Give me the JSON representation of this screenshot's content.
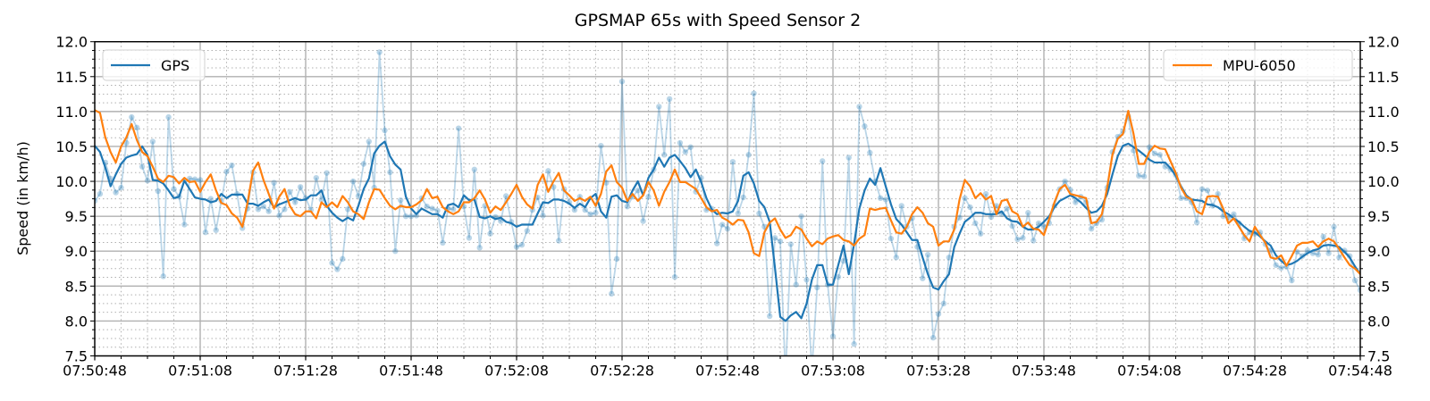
{
  "chart_data": {
    "type": "line",
    "title": "GPSMAP 65s with Speed Sensor 2",
    "xlabel": "",
    "ylabel": "Speed (in km/h)",
    "ylim": [
      7.5,
      12.0
    ],
    "xlim": [
      "07:50:48",
      "07:54:48"
    ],
    "xticks": [
      "07:50:48",
      "07:51:08",
      "07:51:28",
      "07:51:48",
      "07:52:08",
      "07:52:28",
      "07:52:48",
      "07:53:08",
      "07:53:28",
      "07:53:48",
      "07:54:08",
      "07:54:28",
      "07:54:48"
    ],
    "yticks": [
      "7.5",
      "8.0",
      "8.5",
      "9.0",
      "9.5",
      "10.0",
      "10.5",
      "11.0",
      "11.5",
      "12.0"
    ],
    "x_minor_step_seconds": 5,
    "y_minor_step": 0.125,
    "grid": true,
    "right_axis_mirrors_left": true,
    "legends": [
      {
        "placement": "top-left",
        "entries": [
          "GPS"
        ]
      },
      {
        "placement": "top-right",
        "entries": [
          "MPU-6050"
        ]
      }
    ],
    "colors": {
      "GPS": "#1f77b4",
      "MPU-6050": "#ff7f0e",
      "grid": "#b0b0b0"
    },
    "x": [
      "07:50:48",
      "07:50:49",
      "07:50:50",
      "07:50:51",
      "07:50:52",
      "07:50:53",
      "07:50:54",
      "07:50:55",
      "07:50:56",
      "07:50:57",
      "07:50:58",
      "07:50:59",
      "07:51:00",
      "07:51:01",
      "07:51:02",
      "07:51:03",
      "07:51:04",
      "07:51:05",
      "07:51:06",
      "07:51:07",
      "07:51:08",
      "07:51:09",
      "07:51:10",
      "07:51:11",
      "07:51:12",
      "07:51:13",
      "07:51:14",
      "07:51:15",
      "07:51:16",
      "07:51:17",
      "07:51:18",
      "07:51:19",
      "07:51:20",
      "07:51:21",
      "07:51:22",
      "07:51:23",
      "07:51:24",
      "07:51:25",
      "07:51:26",
      "07:51:27",
      "07:51:28",
      "07:51:29",
      "07:51:30",
      "07:51:31",
      "07:51:32",
      "07:51:33",
      "07:51:34",
      "07:51:35",
      "07:51:36",
      "07:51:37",
      "07:51:38",
      "07:51:39",
      "07:51:40",
      "07:51:41",
      "07:51:42",
      "07:51:43",
      "07:51:44",
      "07:51:45",
      "07:51:46",
      "07:51:47",
      "07:51:48",
      "07:51:49",
      "07:51:50",
      "07:51:51",
      "07:51:52",
      "07:51:53",
      "07:51:54",
      "07:51:55",
      "07:51:56",
      "07:51:57",
      "07:51:58",
      "07:51:59",
      "07:52:00",
      "07:52:01",
      "07:52:02",
      "07:52:03",
      "07:52:04",
      "07:52:05",
      "07:52:06",
      "07:52:07",
      "07:52:08",
      "07:52:09",
      "07:52:10",
      "07:52:11",
      "07:52:12",
      "07:52:13",
      "07:52:14",
      "07:52:15",
      "07:52:16",
      "07:52:17",
      "07:52:18",
      "07:52:19",
      "07:52:20",
      "07:52:21",
      "07:52:22",
      "07:52:23",
      "07:52:24",
      "07:52:25",
      "07:52:26",
      "07:52:27",
      "07:52:28",
      "07:52:29",
      "07:52:30",
      "07:52:31",
      "07:52:32",
      "07:52:33",
      "07:52:34",
      "07:52:35",
      "07:52:36",
      "07:52:37",
      "07:52:38",
      "07:52:39",
      "07:52:40",
      "07:52:41",
      "07:52:42",
      "07:52:43",
      "07:52:44",
      "07:52:45",
      "07:52:46",
      "07:52:47",
      "07:52:48",
      "07:52:49",
      "07:52:50",
      "07:52:51",
      "07:52:52",
      "07:52:53",
      "07:52:54",
      "07:52:55",
      "07:52:56",
      "07:52:57",
      "07:52:58",
      "07:52:59",
      "07:53:00",
      "07:53:01",
      "07:53:02",
      "07:53:03",
      "07:53:04",
      "07:53:05",
      "07:53:06",
      "07:53:07",
      "07:53:08",
      "07:53:09",
      "07:53:10",
      "07:53:11",
      "07:53:12",
      "07:53:13",
      "07:53:14",
      "07:53:15",
      "07:53:16",
      "07:53:17",
      "07:53:18",
      "07:53:19",
      "07:53:20",
      "07:53:21",
      "07:53:22",
      "07:53:23",
      "07:53:24",
      "07:53:25",
      "07:53:26",
      "07:53:27",
      "07:53:28",
      "07:53:29",
      "07:53:30",
      "07:53:31",
      "07:53:32",
      "07:53:33",
      "07:53:34",
      "07:53:35",
      "07:53:36",
      "07:53:37",
      "07:53:38",
      "07:53:39",
      "07:53:40",
      "07:53:41",
      "07:53:42",
      "07:53:43",
      "07:53:44",
      "07:53:45",
      "07:53:46",
      "07:53:47",
      "07:53:48",
      "07:53:49",
      "07:53:50",
      "07:53:51",
      "07:53:52",
      "07:53:53",
      "07:53:54",
      "07:53:55",
      "07:53:56",
      "07:53:57",
      "07:53:58",
      "07:53:59",
      "07:54:00",
      "07:54:01",
      "07:54:02",
      "07:54:03",
      "07:54:04",
      "07:54:05",
      "07:54:06",
      "07:54:07",
      "07:54:08",
      "07:54:09",
      "07:54:10",
      "07:54:11",
      "07:54:12",
      "07:54:13",
      "07:54:14",
      "07:54:15",
      "07:54:16",
      "07:54:17",
      "07:54:18",
      "07:54:19",
      "07:54:20",
      "07:54:21",
      "07:54:22",
      "07:54:23",
      "07:54:24",
      "07:54:25",
      "07:54:26",
      "07:54:27",
      "07:54:28",
      "07:54:29",
      "07:54:30",
      "07:54:31",
      "07:54:32",
      "07:54:33",
      "07:54:34",
      "07:54:35",
      "07:54:36",
      "07:54:37",
      "07:54:38",
      "07:54:39",
      "07:54:40",
      "07:54:41",
      "07:54:42",
      "07:54:43",
      "07:54:44",
      "07:54:45",
      "07:54:46",
      "07:54:47",
      "07:54:48"
    ],
    "series": [
      {
        "name": "GPS",
        "style": "smoothed-line",
        "values": [
          10.51,
          10.42,
          10.2,
          9.93,
          10.1,
          10.25,
          10.34,
          10.37,
          10.39,
          10.5,
          10.38,
          10.02,
          10.01,
          9.97,
          9.87,
          9.76,
          9.78,
          10.01,
          9.89,
          9.77,
          9.75,
          9.74,
          9.7,
          9.72,
          9.82,
          9.76,
          9.81,
          9.81,
          9.81,
          9.68,
          9.68,
          9.65,
          9.7,
          9.74,
          9.63,
          9.67,
          9.7,
          9.73,
          9.76,
          9.73,
          9.74,
          9.8,
          9.8,
          9.87,
          9.65,
          9.55,
          9.48,
          9.43,
          9.48,
          9.44,
          9.65,
          9.89,
          10.04,
          10.4,
          10.51,
          10.57,
          10.36,
          10.24,
          10.17,
          9.78,
          9.61,
          9.53,
          9.61,
          9.57,
          9.53,
          9.53,
          9.48,
          9.66,
          9.68,
          9.63,
          9.8,
          9.73,
          9.74,
          9.49,
          9.47,
          9.5,
          9.46,
          9.48,
          9.42,
          9.4,
          9.35,
          9.38,
          9.38,
          9.38,
          9.54,
          9.7,
          9.69,
          9.74,
          9.74,
          9.72,
          9.68,
          9.62,
          9.68,
          9.63,
          9.76,
          9.82,
          9.57,
          9.48,
          9.78,
          9.8,
          9.72,
          9.7,
          9.87,
          10.0,
          9.8,
          10.05,
          10.17,
          10.34,
          10.21,
          10.34,
          10.38,
          10.29,
          10.19,
          10.06,
          10.17,
          9.99,
          9.76,
          9.6,
          9.53,
          9.55,
          9.54,
          9.57,
          9.72,
          10.08,
          10.13,
          9.97,
          9.72,
          9.63,
          9.42,
          8.76,
          8.06,
          8.0,
          8.08,
          8.13,
          8.04,
          8.25,
          8.59,
          8.8,
          8.8,
          8.52,
          8.52,
          8.8,
          9.08,
          8.67,
          9.1,
          9.61,
          9.87,
          10.04,
          9.95,
          10.19,
          9.93,
          9.67,
          9.46,
          9.38,
          9.27,
          9.16,
          9.16,
          8.91,
          8.67,
          8.48,
          8.45,
          8.57,
          8.67,
          9.06,
          9.25,
          9.42,
          9.48,
          9.55,
          9.55,
          9.53,
          9.53,
          9.53,
          9.57,
          9.47,
          9.43,
          9.42,
          9.35,
          9.31,
          9.31,
          9.35,
          9.42,
          9.5,
          9.63,
          9.72,
          9.76,
          9.8,
          9.76,
          9.7,
          9.62,
          9.55,
          9.57,
          9.65,
          9.82,
          10.1,
          10.36,
          10.51,
          10.54,
          10.49,
          10.44,
          10.38,
          10.31,
          10.27,
          10.27,
          10.27,
          10.19,
          10.08,
          9.93,
          9.8,
          9.74,
          9.73,
          9.72,
          9.67,
          9.66,
          9.63,
          9.57,
          9.53,
          9.47,
          9.42,
          9.35,
          9.29,
          9.27,
          9.21,
          9.14,
          9.08,
          8.94,
          8.86,
          8.8,
          8.82,
          8.86,
          8.92,
          8.97,
          9.01,
          9.03,
          9.08,
          9.09,
          9.08,
          9.06,
          8.99,
          8.91,
          8.78,
          8.67
        ]
      },
      {
        "style": "raw-points",
        "values": [
          9.72,
          9.82,
          10.27,
          10.04,
          9.84,
          9.91,
          10.55,
          10.92,
          10.77,
          10.21,
          10.01,
          10.57,
          9.86,
          8.64,
          10.92,
          9.89,
          9.78,
          9.38,
          10.04,
          10.03,
          10.02,
          9.27,
          9.75,
          9.3,
          9.72,
          10.14,
          10.23,
          9.82,
          9.33,
          9.61,
          10.13,
          9.6,
          9.64,
          9.57,
          9.98,
          9.51,
          9.6,
          9.85,
          9.7,
          9.92,
          9.76,
          9.59,
          10.05,
          9.74,
          10.12,
          8.83,
          8.74,
          8.89,
          9.6,
          10.0,
          9.79,
          10.25,
          10.57,
          9.91,
          11.85,
          10.73,
          10.13,
          9.0,
          9.73,
          9.5,
          9.5,
          9.51,
          9.76,
          9.64,
          9.61,
          9.58,
          9.12,
          9.61,
          9.6,
          10.76,
          9.64,
          9.19,
          10.17,
          9.05,
          9.65,
          9.25,
          9.49,
          9.43,
          9.79,
          9.42,
          9.06,
          9.09,
          9.29,
          9.59,
          9.77,
          9.51,
          10.15,
          9.92,
          9.15,
          9.89,
          9.7,
          9.59,
          9.78,
          9.59,
          9.53,
          9.55,
          10.51,
          9.98,
          8.39,
          8.89,
          11.43,
          9.64,
          9.78,
          9.87,
          9.43,
          9.78,
          10.17,
          11.07,
          10.38,
          11.18,
          8.63,
          10.55,
          10.42,
          10.49,
          9.85,
          10.05,
          9.59,
          9.61,
          9.11,
          9.38,
          9.32,
          10.28,
          9.54,
          9.77,
          10.38,
          11.26,
          9.54,
          9.35,
          8.07,
          9.19,
          9.14,
          7.2,
          9.1,
          8.52,
          9.5,
          8.59,
          7.3,
          8.48,
          10.29,
          8.52,
          7.78,
          8.63,
          8.86,
          10.34,
          7.67,
          11.07,
          10.79,
          10.41,
          10.0,
          9.76,
          9.74,
          9.18,
          8.91,
          9.65,
          9.35,
          9.47,
          9.06,
          8.61,
          8.95,
          7.76,
          8.1,
          8.25,
          8.91,
          9.35,
          9.48,
          9.76,
          9.63,
          9.4,
          9.25,
          9.82,
          9.49,
          9.65,
          9.53,
          9.61,
          9.36,
          9.17,
          9.19,
          9.55,
          9.15,
          9.4,
          9.35,
          9.4,
          9.65,
          9.89,
          10.0,
          9.88,
          9.7,
          9.78,
          9.7,
          9.32,
          9.4,
          9.45,
          9.91,
          10.42,
          10.64,
          10.72,
          10.93,
          10.44,
          10.08,
          10.07,
          10.49,
          10.4,
          10.38,
          10.21,
          10.17,
          10.09,
          9.76,
          9.76,
          9.7,
          9.41,
          9.89,
          9.87,
          9.65,
          9.82,
          9.5,
          9.48,
          9.53,
          9.4,
          9.18,
          9.27,
          9.25,
          9.27,
          9.1,
          9.01,
          8.8,
          8.76,
          8.78,
          8.58,
          8.99,
          8.93,
          9.01,
          8.97,
          8.95,
          9.21,
          8.97,
          9.35,
          8.91,
          9.01,
          8.93,
          8.58,
          8.44
        ]
      },
      {
        "name": "MPU-6050",
        "style": "line",
        "values": [
          11.02,
          10.98,
          10.63,
          10.42,
          10.27,
          10.5,
          10.63,
          10.82,
          10.59,
          10.42,
          10.36,
          10.21,
          10.04,
          9.99,
          10.08,
          10.06,
          9.97,
          10.05,
          9.99,
          10.0,
          9.85,
          9.99,
          10.1,
          9.87,
          9.69,
          9.66,
          9.54,
          9.48,
          9.35,
          9.7,
          10.15,
          10.27,
          10.02,
          9.82,
          9.61,
          9.78,
          9.89,
          9.65,
          9.53,
          9.5,
          9.57,
          9.57,
          9.47,
          9.7,
          9.63,
          9.7,
          9.63,
          9.79,
          9.7,
          9.57,
          9.53,
          9.46,
          9.7,
          9.89,
          9.88,
          9.76,
          9.65,
          9.6,
          9.65,
          9.63,
          9.63,
          9.67,
          9.73,
          9.89,
          9.76,
          9.78,
          9.63,
          9.57,
          9.53,
          9.57,
          9.7,
          9.7,
          9.76,
          9.87,
          9.74,
          9.55,
          9.64,
          9.59,
          9.7,
          9.82,
          9.95,
          9.78,
          9.67,
          9.61,
          9.95,
          10.1,
          9.85,
          10.0,
          10.12,
          9.87,
          9.8,
          9.72,
          9.76,
          9.72,
          9.78,
          9.65,
          9.82,
          10.14,
          10.23,
          9.99,
          9.91,
          9.72,
          9.82,
          9.72,
          9.8,
          9.99,
          9.87,
          9.65,
          9.85,
          9.99,
          10.17,
          9.99,
          9.99,
          9.94,
          9.89,
          9.76,
          9.63,
          9.57,
          9.59,
          9.48,
          9.44,
          9.38,
          9.45,
          9.44,
          9.27,
          8.97,
          8.93,
          9.27,
          9.41,
          9.47,
          9.31,
          9.19,
          9.23,
          9.35,
          9.31,
          9.18,
          9.07,
          9.14,
          9.1,
          9.18,
          9.21,
          9.23,
          9.16,
          9.14,
          9.08,
          9.18,
          9.23,
          9.61,
          9.59,
          9.61,
          9.62,
          9.44,
          9.27,
          9.25,
          9.35,
          9.53,
          9.63,
          9.55,
          9.4,
          9.35,
          9.08,
          9.14,
          9.14,
          9.31,
          9.74,
          10.02,
          9.93,
          9.76,
          9.83,
          9.74,
          9.79,
          9.53,
          9.72,
          9.74,
          9.57,
          9.53,
          9.35,
          9.41,
          9.32,
          9.31,
          9.23,
          9.46,
          9.7,
          9.89,
          9.95,
          9.82,
          9.8,
          9.78,
          9.76,
          9.4,
          9.42,
          9.53,
          9.91,
          10.38,
          10.61,
          10.68,
          11.01,
          10.68,
          10.25,
          10.25,
          10.42,
          10.51,
          10.47,
          10.46,
          10.29,
          10.12,
          9.91,
          9.78,
          9.74,
          9.57,
          9.53,
          9.78,
          9.79,
          9.78,
          9.61,
          9.4,
          9.47,
          9.35,
          9.23,
          9.14,
          9.35,
          9.23,
          9.12,
          8.91,
          8.89,
          8.94,
          8.79,
          8.93,
          9.08,
          9.12,
          9.12,
          9.14,
          9.06,
          9.14,
          9.18,
          9.14,
          9.03,
          8.91,
          8.8,
          8.75,
          8.67
        ]
      }
    ]
  }
}
